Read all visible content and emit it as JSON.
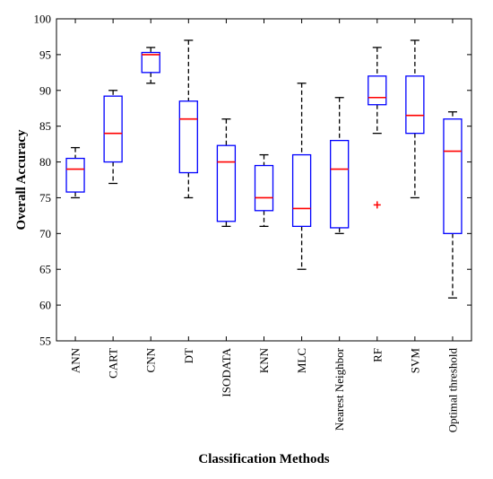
{
  "chart_data": {
    "type": "box",
    "title": "",
    "xlabel": "Classification Methods",
    "ylabel": "Overall Accuracy",
    "ylim": [
      55,
      100
    ],
    "yticks": [
      55,
      60,
      65,
      70,
      75,
      80,
      85,
      90,
      95,
      100
    ],
    "grid": false,
    "legend": "none",
    "colors": {
      "box": "#0000ff",
      "median": "#ff0000",
      "whisker": "#000000",
      "outlier": "#ff0000"
    },
    "categories": [
      "ANN",
      "CART",
      "CNN",
      "DT",
      "ISODATA",
      "KNN",
      "MLC",
      "Nearest Neighbor",
      "RF",
      "SVM",
      "Optimal threshold"
    ],
    "boxes": [
      {
        "name": "ANN",
        "min": 75,
        "q1": 75.8,
        "median": 79,
        "q3": 80.5,
        "max": 82,
        "outliers": []
      },
      {
        "name": "CART",
        "min": 77,
        "q1": 80,
        "median": 84,
        "q3": 89.2,
        "max": 90,
        "outliers": []
      },
      {
        "name": "CNN",
        "min": 91,
        "q1": 92.5,
        "median": 95,
        "q3": 95.3,
        "max": 96,
        "outliers": []
      },
      {
        "name": "DT",
        "min": 75,
        "q1": 78.5,
        "median": 86,
        "q3": 88.5,
        "max": 97,
        "outliers": []
      },
      {
        "name": "ISODATA",
        "min": 71,
        "q1": 71.7,
        "median": 80,
        "q3": 82.3,
        "max": 86,
        "outliers": []
      },
      {
        "name": "KNN",
        "min": 71,
        "q1": 73.2,
        "median": 75,
        "q3": 79.5,
        "max": 81,
        "outliers": []
      },
      {
        "name": "MLC",
        "min": 65,
        "q1": 71,
        "median": 73.5,
        "q3": 81,
        "max": 91,
        "outliers": []
      },
      {
        "name": "Nearest Neighbor",
        "min": 70,
        "q1": 70.8,
        "median": 79,
        "q3": 83,
        "max": 89,
        "outliers": []
      },
      {
        "name": "RF",
        "min": 84,
        "q1": 88,
        "median": 89,
        "q3": 92,
        "max": 96,
        "outliers": [
          74
        ]
      },
      {
        "name": "SVM",
        "min": 75,
        "q1": 84,
        "median": 86.5,
        "q3": 92,
        "max": 97,
        "outliers": []
      },
      {
        "name": "Optimal threshold",
        "min": 61,
        "q1": 70,
        "median": 81.5,
        "q3": 86,
        "max": 87,
        "outliers": []
      }
    ]
  }
}
